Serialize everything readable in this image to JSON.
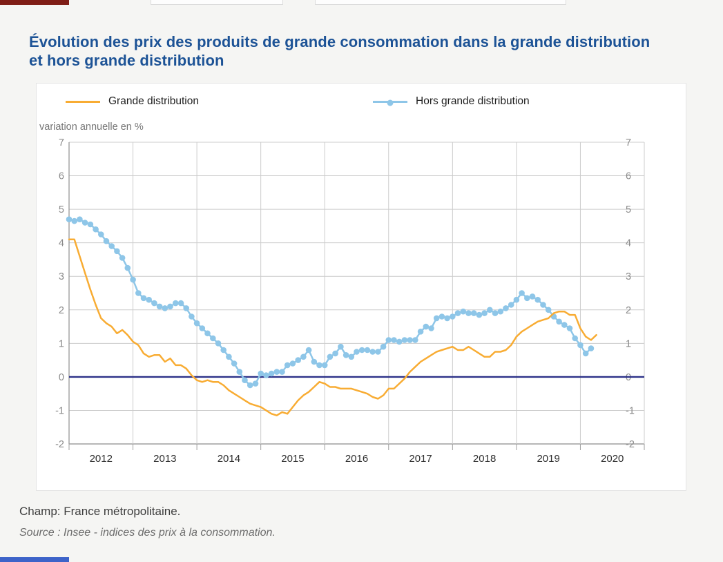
{
  "page": {
    "title": "Évolution des prix des produits de grande consommation dans la grande distribution et hors grande distribution",
    "footer": {
      "champ": "Champ: France métropolitaine.",
      "source": "Source : Insee - indices des prix à la consommation."
    }
  },
  "legend": {
    "items": [
      {
        "label": "Grande distribution",
        "color": "#F8AC33",
        "marker": "line"
      },
      {
        "label": "Hors grande distribution",
        "color": "#8EC6E8",
        "marker": "line-dot"
      }
    ]
  },
  "decor": {
    "top_left_bar_color": "#7F1D16",
    "bottom_left_bar_color": "#3D63C9"
  },
  "chart_data": {
    "type": "line",
    "title": "Évolution des prix des produits de grande consommation dans la grande distribution et hors grande distribution",
    "unit_label": "variation annuelle en %",
    "x_tick_labels": [
      "2012",
      "2013",
      "2014",
      "2015",
      "2016",
      "2017",
      "2018",
      "2019",
      "2020"
    ],
    "x_months_total": 108,
    "x_start": "2012-01",
    "y_ticks": [
      7,
      6,
      5,
      4,
      3,
      2,
      1,
      0,
      -1,
      -2
    ],
    "y_min": -2,
    "y_max": 7,
    "grid": true,
    "grid_color": "#cccccc",
    "axis_color": "#9e9e9e",
    "zero_line_color": "#2C3188",
    "legend_position": "top",
    "series": [
      {
        "name": "Hors grande distribution",
        "data_name": "hors-grande-distribution",
        "color": "#8EC6E8",
        "markers": true,
        "start": "2012-01",
        "values": [
          4.7,
          4.65,
          4.7,
          4.6,
          4.55,
          4.4,
          4.25,
          4.05,
          3.9,
          3.75,
          3.55,
          3.25,
          2.9,
          2.5,
          2.35,
          2.3,
          2.2,
          2.1,
          2.05,
          2.1,
          2.2,
          2.2,
          2.05,
          1.8,
          1.6,
          1.45,
          1.3,
          1.15,
          1.0,
          0.8,
          0.6,
          0.4,
          0.15,
          -0.1,
          -0.25,
          -0.2,
          0.1,
          0.05,
          0.1,
          0.15,
          0.15,
          0.35,
          0.4,
          0.5,
          0.6,
          0.8,
          0.45,
          0.35,
          0.35,
          0.6,
          0.7,
          0.9,
          0.65,
          0.6,
          0.75,
          0.8,
          0.8,
          0.75,
          0.75,
          0.9,
          1.1,
          1.1,
          1.05,
          1.1,
          1.1,
          1.1,
          1.35,
          1.5,
          1.45,
          1.75,
          1.8,
          1.75,
          1.8,
          1.9,
          1.95,
          1.9,
          1.9,
          1.85,
          1.9,
          2.0,
          1.9,
          1.95,
          2.05,
          2.15,
          2.3,
          2.5,
          2.35,
          2.4,
          2.3,
          2.15,
          2.0,
          1.8,
          1.65,
          1.55,
          1.45,
          1.15,
          0.95,
          0.7,
          0.85
        ]
      },
      {
        "name": "Grande distribution",
        "data_name": "grande-distribution",
        "color": "#F8AC33",
        "markers": false,
        "start": "2012-01",
        "values": [
          4.1,
          4.1,
          3.6,
          3.1,
          2.6,
          2.15,
          1.75,
          1.6,
          1.5,
          1.3,
          1.4,
          1.25,
          1.05,
          0.95,
          0.7,
          0.6,
          0.65,
          0.65,
          0.45,
          0.55,
          0.35,
          0.35,
          0.25,
          0.05,
          -0.1,
          -0.15,
          -0.1,
          -0.15,
          -0.15,
          -0.25,
          -0.4,
          -0.5,
          -0.6,
          -0.7,
          -0.8,
          -0.85,
          -0.9,
          -1.0,
          -1.1,
          -1.15,
          -1.05,
          -1.1,
          -0.9,
          -0.7,
          -0.55,
          -0.45,
          -0.3,
          -0.15,
          -0.2,
          -0.3,
          -0.3,
          -0.35,
          -0.35,
          -0.35,
          -0.4,
          -0.45,
          -0.5,
          -0.6,
          -0.65,
          -0.55,
          -0.35,
          -0.35,
          -0.2,
          -0.05,
          0.15,
          0.3,
          0.45,
          0.55,
          0.65,
          0.75,
          0.8,
          0.85,
          0.9,
          0.8,
          0.8,
          0.9,
          0.8,
          0.7,
          0.6,
          0.6,
          0.75,
          0.75,
          0.8,
          0.95,
          1.2,
          1.35,
          1.45,
          1.55,
          1.65,
          1.7,
          1.75,
          1.9,
          1.95,
          1.95,
          1.85,
          1.85,
          1.45,
          1.2,
          1.1,
          1.25
        ]
      }
    ]
  }
}
